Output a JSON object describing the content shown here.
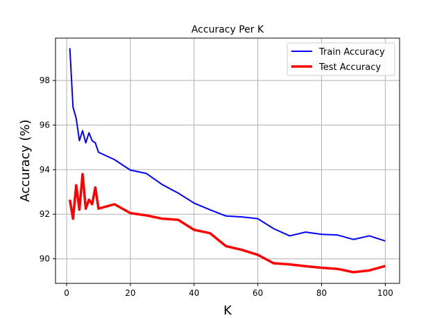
{
  "chart_data": {
    "type": "line",
    "title": "Accuracy Per K",
    "xlabel": "K",
    "ylabel": "Accuracy (%)",
    "xlim": [
      -3.5,
      104.5
    ],
    "ylim": [
      88.9,
      99.9
    ],
    "xticks": [
      0,
      20,
      40,
      60,
      80,
      100
    ],
    "yticks": [
      90,
      92,
      94,
      96,
      98
    ],
    "grid": true,
    "legend": "top-right",
    "series": [
      {
        "name": "Train Accuracy",
        "color": "#0000ff",
        "x": [
          1,
          2,
          3,
          4,
          5,
          6,
          7,
          8,
          9,
          10,
          15,
          20,
          25,
          30,
          35,
          40,
          45,
          50,
          55,
          60,
          65,
          70,
          75,
          80,
          85,
          90,
          95,
          100
        ],
        "y": [
          99.45,
          96.8,
          96.3,
          95.3,
          95.75,
          95.2,
          95.65,
          95.3,
          95.2,
          94.78,
          94.45,
          93.98,
          93.83,
          93.33,
          92.95,
          92.5,
          92.2,
          91.92,
          91.88,
          91.8,
          91.35,
          91.03,
          91.2,
          91.1,
          91.07,
          90.87,
          91.03,
          90.8
        ]
      },
      {
        "name": "Test Accuracy",
        "color": "#ff0000",
        "x": [
          1,
          2,
          3,
          4,
          5,
          6,
          7,
          8,
          9,
          10,
          15,
          20,
          25,
          30,
          35,
          40,
          45,
          50,
          55,
          60,
          65,
          70,
          75,
          80,
          85,
          90,
          95,
          100
        ],
        "y": [
          92.65,
          91.8,
          93.3,
          92.2,
          93.8,
          92.25,
          92.65,
          92.45,
          93.2,
          92.25,
          92.45,
          92.05,
          91.95,
          91.8,
          91.75,
          91.3,
          91.15,
          90.57,
          90.4,
          90.18,
          89.8,
          89.75,
          89.67,
          89.6,
          89.55,
          89.4,
          89.48,
          89.68
        ]
      }
    ]
  }
}
